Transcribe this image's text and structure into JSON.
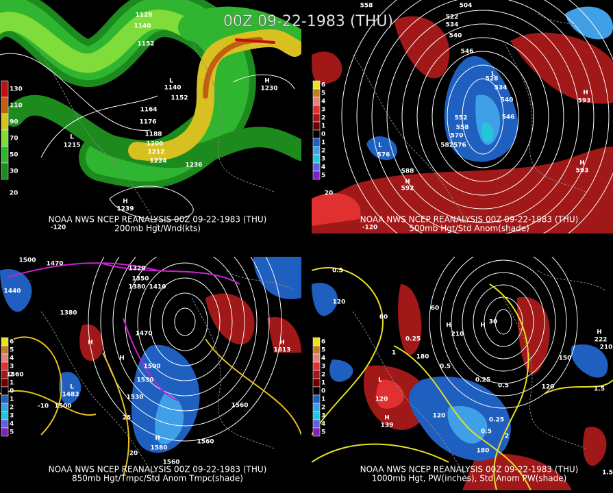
{
  "title": "00Z 09-22-1983 (THU)",
  "panels": [
    {
      "caption": "NOAA NWS NCEP REANALYSIS 00Z 09-22-1983 (THU)",
      "subcaption": "200mb Hgt/Wnd(kts)",
      "legend": [
        "130",
        "110",
        "90",
        "70",
        "50",
        "30"
      ],
      "labels": [
        "1128",
        "1140",
        "1152",
        "1152",
        "1164",
        "1176",
        "1188",
        "1200",
        "1212",
        "1224",
        "1236",
        "L",
        "1215",
        "L",
        "1140",
        "H",
        "1230",
        "H",
        "1239",
        "-120",
        "20"
      ]
    },
    {
      "caption": "NOAA NWS NCEP REANALYSIS 00Z 09-22-1983 (THU)",
      "subcaption": "500mb Hgt/Std Anom(shade)",
      "legend": [
        "6",
        "5",
        "4",
        "3",
        "2",
        "1",
        "0",
        "1",
        "2",
        "3",
        "4",
        "5"
      ],
      "labels": [
        "558",
        "504",
        "522",
        "534",
        "540",
        "546",
        "528",
        "534",
        "540",
        "546",
        "552",
        "558",
        "570",
        "582576",
        "588",
        "L",
        "576",
        "L",
        "H",
        "593",
        "H",
        "593",
        "H",
        "592",
        "20",
        "-120"
      ]
    },
    {
      "caption": "NOAA NWS NCEP REANALYSIS 00Z 09-22-1983 (THU)",
      "subcaption": "850mb Hgt/Tmpc/Std Anom Tmpc(shade)",
      "legend": [
        "6",
        "5",
        "4",
        "3",
        "2",
        "1",
        "0",
        "1",
        "2",
        "3",
        "4",
        "5"
      ],
      "labels": [
        "1500",
        "1470",
        "1320",
        "1350",
        "1380",
        "1410",
        "1440",
        "1380",
        "1470",
        "1500",
        "1530",
        "1530",
        "1560",
        "1560",
        "1560",
        "1560",
        "H",
        "H",
        "L",
        "1483",
        "1500",
        "H",
        "1580",
        "-10",
        "20",
        "25",
        "H",
        "1613"
      ]
    },
    {
      "caption": "NOAA NWS NCEP REANALYSIS 00Z 09-22-1983 (THU)",
      "subcaption": "1000mb Hgt, PW(inches), Std Anom PW(shade)",
      "legend": [
        "6",
        "5",
        "4",
        "3",
        "2",
        "1",
        "0",
        "1",
        "2",
        "3",
        "4",
        "5"
      ],
      "labels": [
        "0.5",
        "120",
        "60",
        "60",
        "H",
        "210",
        "H",
        "30",
        "0.25",
        "1",
        "180",
        "0.5",
        "0.25",
        "0.5",
        "H",
        "222",
        "210",
        "150",
        "120",
        "1.5",
        "L",
        "120",
        "H",
        "139",
        "120",
        "0.25",
        "0.5",
        "2",
        "180",
        "1.5"
      ]
    }
  ]
}
